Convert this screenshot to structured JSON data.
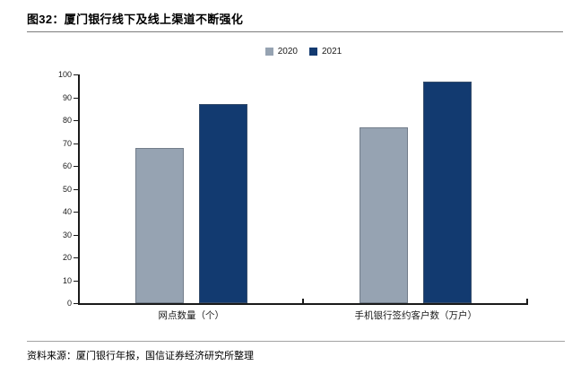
{
  "page": {
    "title": "图32：厦门银行线下及线上渠道不断强化",
    "source_note": "资料来源：厦门银行年报，国信证券经济研究所整理"
  },
  "chart_data": {
    "type": "bar",
    "title": "厦门银行线下及线上渠道不断强化",
    "categories": [
      "网点数量（个）",
      "手机银行签约客户数（万户）"
    ],
    "series": [
      {
        "name": "2020",
        "color": "#96A3B2",
        "values": [
          68,
          77
        ]
      },
      {
        "name": "2021",
        "color": "#123A70",
        "values": [
          87,
          97
        ]
      }
    ],
    "xlabel": "",
    "ylabel": "",
    "ylim": [
      0,
      100
    ],
    "yticks": [
      0,
      10,
      20,
      30,
      40,
      50,
      60,
      70,
      80,
      90,
      100
    ],
    "grid": false,
    "legend_position": "top-center",
    "axis_color": "#1a1a1a"
  }
}
